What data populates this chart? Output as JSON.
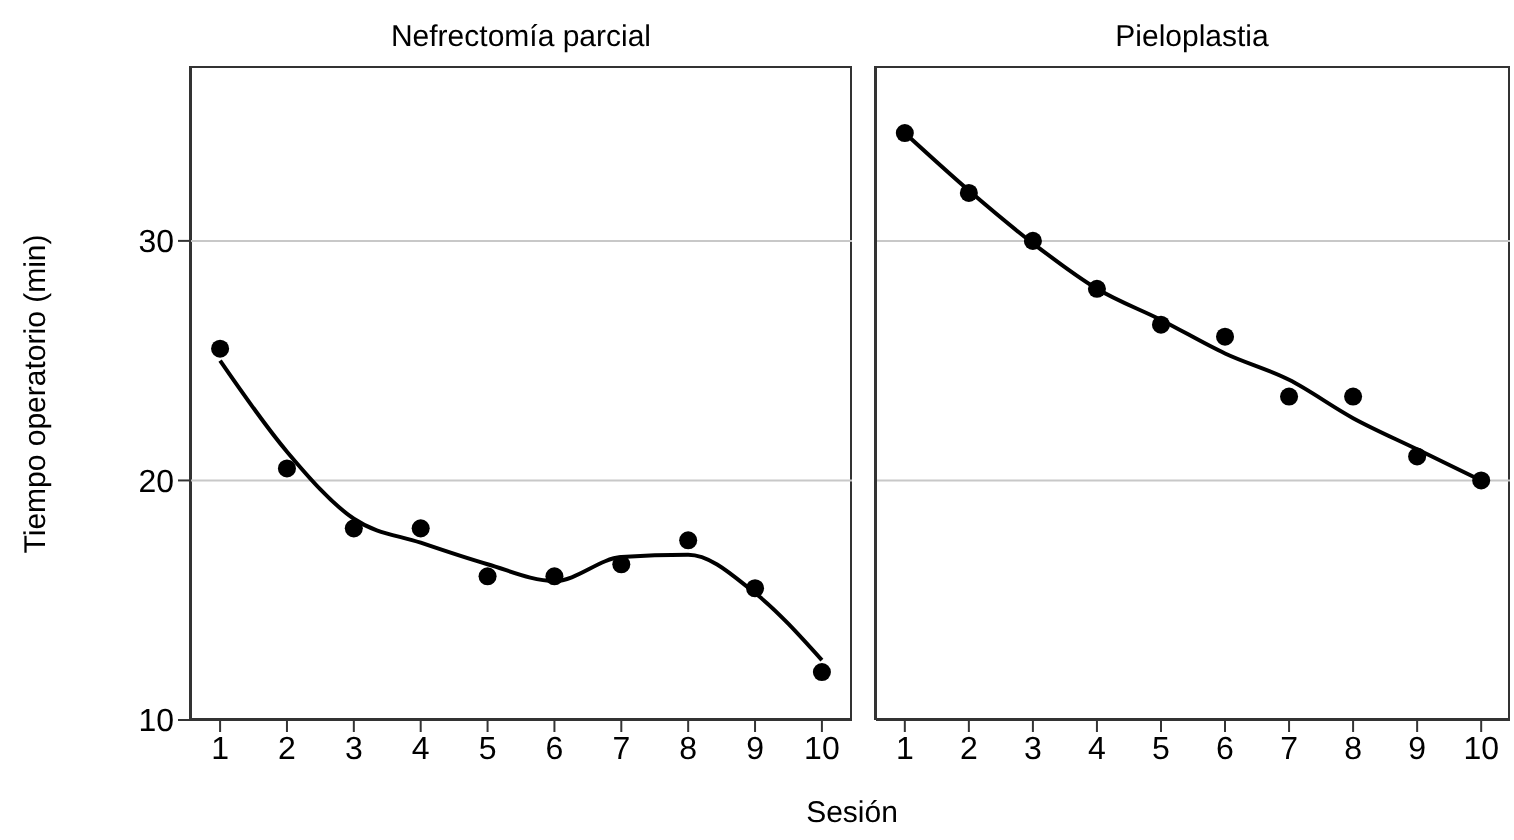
{
  "chart_data": [
    {
      "type": "scatter",
      "title": "Nefrectomía parcial",
      "xlabel": "Sesión",
      "ylabel": "Tiempo operatorio (min)",
      "x": [
        1,
        2,
        3,
        4,
        5,
        6,
        7,
        8,
        9,
        10
      ],
      "xlim": [
        0.55,
        10.45
      ],
      "xticks": [
        1,
        2,
        3,
        4,
        5,
        6,
        7,
        8,
        9,
        10
      ],
      "ylim": [
        10,
        37.3
      ],
      "yticks": [
        10,
        20,
        30
      ],
      "grid": "y",
      "marker": "circle",
      "series": [
        {
          "type": "scatter",
          "color": "#000000",
          "values": [
            25.5,
            20.5,
            18,
            18,
            16,
            16,
            16.5,
            17.5,
            15.5,
            12
          ]
        },
        {
          "type": "line",
          "marker": "none",
          "color": "#000000",
          "values": [
            25,
            21.2,
            18.4,
            17.4,
            16.5,
            15.8,
            16.8,
            16.9,
            15.3,
            12.5
          ]
        }
      ]
    },
    {
      "type": "scatter",
      "title": "Pieloplastia",
      "x": [
        1,
        2,
        3,
        4,
        5,
        6,
        7,
        8,
        9,
        10
      ],
      "xlim": [
        0.55,
        10.45
      ],
      "xticks": [
        1,
        2,
        3,
        4,
        5,
        6,
        7,
        8,
        9,
        10
      ],
      "ylim": [
        10,
        37.3
      ],
      "yticks": [
        10,
        20,
        30
      ],
      "tick_labels": "x",
      "grid": "y",
      "marker": "circle",
      "series": [
        {
          "type": "scatter",
          "color": "#000000",
          "values": [
            34.5,
            32,
            30,
            28,
            26.5,
            26,
            23.5,
            23.5,
            21,
            20
          ]
        },
        {
          "type": "line",
          "marker": "none",
          "color": "#000000",
          "values": [
            34.5,
            32.1,
            29.9,
            28,
            26.7,
            25.3,
            24.2,
            22.6,
            21.3,
            20
          ]
        }
      ]
    }
  ]
}
